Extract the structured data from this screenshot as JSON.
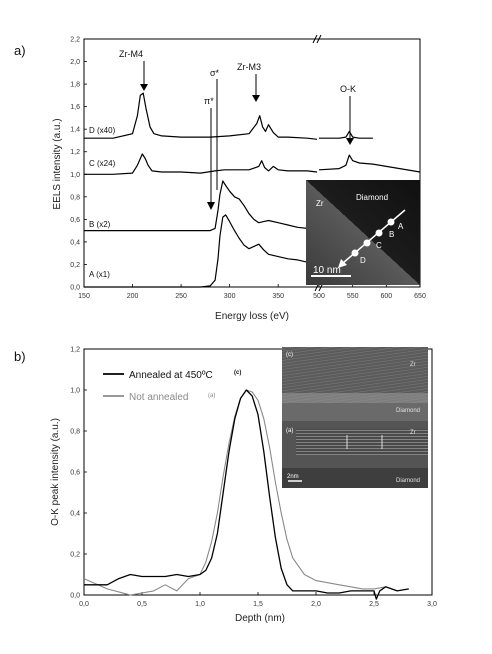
{
  "chart_data": [
    {
      "type": "line",
      "panel_label": "a)",
      "xlabel": "Energy loss (eV)",
      "ylabel": "EELS intensity (a.u.)",
      "xticks": [
        "150",
        "200",
        "250",
        "300",
        "350",
        "500",
        "550",
        "600",
        "650"
      ],
      "yticks": [
        "0,0",
        "0,2",
        "0,4",
        "0,6",
        "0,8",
        "1,0",
        "1,2",
        "1,4",
        "1,6",
        "1,8",
        "2,0",
        "2,2"
      ],
      "ylim": [
        0,
        2.2
      ],
      "x_segments": [
        [
          150,
          390
        ],
        [
          500,
          650
        ]
      ],
      "series": [
        {
          "name": "A (x1)",
          "color": "#000000",
          "x": [
            150,
            270,
            280,
            285,
            288,
            290,
            293,
            296,
            300,
            305,
            310,
            315,
            320,
            325,
            330,
            335,
            340,
            350,
            360,
            370,
            380,
            390
          ],
          "y": [
            0.0,
            0.0,
            0.01,
            0.06,
            0.25,
            0.45,
            0.62,
            0.64,
            0.58,
            0.5,
            0.43,
            0.37,
            0.34,
            0.36,
            0.38,
            0.33,
            0.29,
            0.27,
            0.25,
            0.24,
            0.22,
            0.21
          ]
        },
        {
          "name": "B (x2)",
          "color": "#000000",
          "x": [
            150,
            270,
            280,
            285,
            288,
            290,
            293,
            296,
            300,
            305,
            310,
            315,
            320,
            325,
            330,
            335,
            340,
            350,
            360,
            370,
            380,
            390
          ],
          "y": [
            0.5,
            0.5,
            0.5,
            0.52,
            0.68,
            0.82,
            0.94,
            0.9,
            0.85,
            0.8,
            0.78,
            0.72,
            0.65,
            0.6,
            0.57,
            0.58,
            0.59,
            0.57,
            0.55,
            0.53,
            0.52,
            0.51
          ]
        },
        {
          "name": "C (x24)",
          "color": "#000000",
          "x": [
            150,
            180,
            200,
            205,
            210,
            213,
            216,
            220,
            230,
            250,
            270,
            285,
            295,
            305,
            320,
            330,
            333,
            336,
            340,
            345,
            350,
            360,
            380,
            390,
            500,
            530,
            540,
            545,
            550,
            560,
            580,
            600,
            620,
            640,
            650
          ],
          "y": [
            1.0,
            1.0,
            1.01,
            1.08,
            1.18,
            1.14,
            1.08,
            1.03,
            1.02,
            1.02,
            1.01,
            1.03,
            1.04,
            1.04,
            1.04,
            1.07,
            1.12,
            1.06,
            1.03,
            1.07,
            1.04,
            1.03,
            1.03,
            1.02,
            1.04,
            1.05,
            1.08,
            1.17,
            1.12,
            1.1,
            1.09,
            1.07,
            1.05,
            1.03,
            1.02
          ]
        },
        {
          "name": "D (x40)",
          "color": "#000000",
          "x": [
            150,
            180,
            200,
            205,
            208,
            211,
            214,
            218,
            222,
            230,
            250,
            280,
            300,
            320,
            328,
            331,
            334,
            337,
            340,
            345,
            350,
            360,
            380,
            390,
            500,
            530,
            540,
            545,
            550,
            560,
            580
          ],
          "y": [
            1.32,
            1.32,
            1.36,
            1.52,
            1.7,
            1.72,
            1.58,
            1.42,
            1.36,
            1.34,
            1.33,
            1.33,
            1.34,
            1.36,
            1.45,
            1.52,
            1.42,
            1.38,
            1.44,
            1.37,
            1.33,
            1.33,
            1.32,
            1.31,
            1.32,
            1.32,
            1.33,
            1.38,
            1.33,
            1.32,
            1.32
          ]
        }
      ],
      "annotations": [
        "Zr-M4",
        "σ*",
        "π*",
        "Zr-M3",
        "O-K"
      ],
      "inset": {
        "labels": [
          "Diamond",
          "Zr",
          "A",
          "B",
          "C",
          "D"
        ],
        "scale_bar": "10 nm"
      }
    },
    {
      "type": "line",
      "panel_label": "b)",
      "xlabel": "Depth (nm)",
      "ylabel": "O-K peak intensity (a.u.)",
      "xticks": [
        "0,0",
        "0,5",
        "1,0",
        "1,5",
        "2,0",
        "2,5",
        "3,0"
      ],
      "yticks": [
        "0,0",
        "0,2",
        "0,4",
        "0,6",
        "0,8",
        "1,0",
        "1,2"
      ],
      "xlim": [
        0,
        3
      ],
      "ylim": [
        0,
        1.2
      ],
      "series": [
        {
          "name": "Annealed at 450ºC",
          "legend_tag": "(c)",
          "color": "#000000",
          "x": [
            0.0,
            0.2,
            0.3,
            0.4,
            0.5,
            0.6,
            0.7,
            0.8,
            0.9,
            1.0,
            1.05,
            1.1,
            1.15,
            1.2,
            1.25,
            1.3,
            1.35,
            1.4,
            1.45,
            1.5,
            1.55,
            1.6,
            1.65,
            1.7,
            1.75,
            1.8,
            1.9,
            2.0,
            2.1,
            2.2,
            2.3,
            2.4,
            2.5,
            2.52,
            2.55,
            2.6,
            2.7,
            2.8
          ],
          "y": [
            0.05,
            0.05,
            0.08,
            0.1,
            0.09,
            0.09,
            0.09,
            0.1,
            0.09,
            0.1,
            0.12,
            0.18,
            0.3,
            0.5,
            0.7,
            0.86,
            0.96,
            1.0,
            0.97,
            0.88,
            0.7,
            0.48,
            0.28,
            0.13,
            0.05,
            0.02,
            0.02,
            0.02,
            0.01,
            0.01,
            0.02,
            0.02,
            0.02,
            -0.02,
            0.02,
            0.04,
            0.02,
            0.03
          ]
        },
        {
          "name": "Not annealed",
          "legend_tag": "(a)",
          "color": "#8a8a8a",
          "x": [
            0.0,
            0.2,
            0.4,
            0.6,
            0.7,
            0.8,
            0.9,
            1.0,
            1.05,
            1.1,
            1.15,
            1.2,
            1.25,
            1.3,
            1.35,
            1.4,
            1.45,
            1.5,
            1.55,
            1.6,
            1.65,
            1.7,
            1.75,
            1.8,
            1.9,
            2.0,
            2.1,
            2.2,
            2.3,
            2.4,
            2.5,
            2.6
          ],
          "y": [
            0.08,
            0.03,
            0.0,
            0.02,
            0.05,
            0.02,
            0.08,
            0.1,
            0.16,
            0.26,
            0.4,
            0.58,
            0.74,
            0.87,
            0.96,
            1.0,
            0.99,
            0.95,
            0.86,
            0.72,
            0.55,
            0.4,
            0.27,
            0.18,
            0.1,
            0.07,
            0.06,
            0.05,
            0.04,
            0.03,
            0.03,
            0.04
          ]
        }
      ],
      "inset": {
        "labels": [
          "(c)",
          "Zr",
          "Diamond",
          "(a)",
          "Zr",
          "Diamond"
        ],
        "scale_bar": "2nm"
      }
    }
  ]
}
